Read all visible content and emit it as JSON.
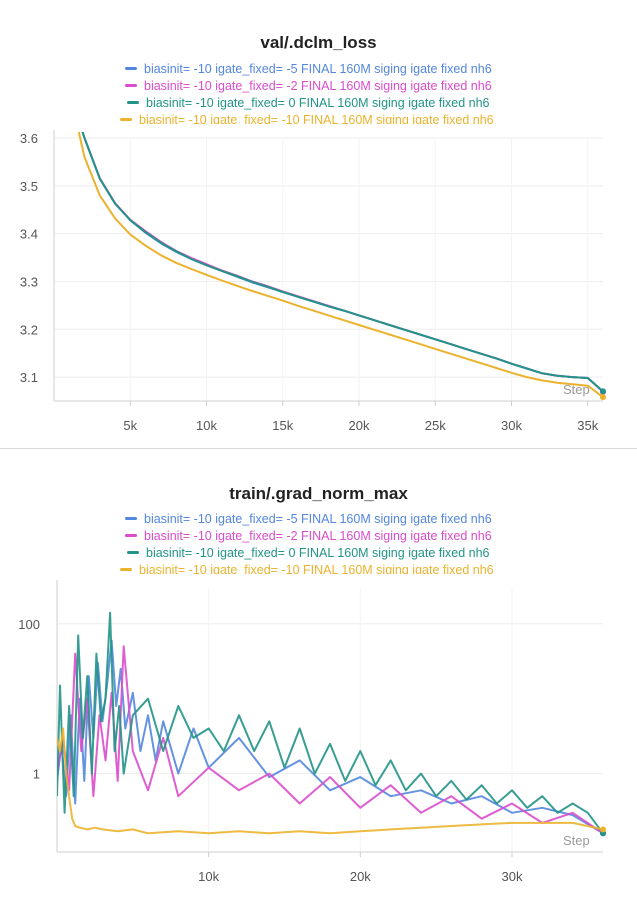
{
  "chart_data": [
    {
      "type": "line",
      "title": "val/.dclm_loss",
      "xlabel": "Step",
      "ylabel": "",
      "x_scale": "linear",
      "y_scale": "linear",
      "xlim": [
        0,
        36000
      ],
      "ylim": [
        3.05,
        3.6
      ],
      "x_ticks": [
        5000,
        10000,
        15000,
        20000,
        25000,
        30000,
        35000
      ],
      "x_tick_labels": [
        "5k",
        "10k",
        "15k",
        "20k",
        "25k",
        "30k",
        "35k"
      ],
      "y_ticks": [
        3.1,
        3.2,
        3.3,
        3.4,
        3.5,
        3.6
      ],
      "y_tick_labels": [
        "3.1",
        "3.2",
        "3.3",
        "3.4",
        "3.5",
        "3.6"
      ],
      "grid": true,
      "legend_position": "top",
      "series": [
        {
          "name": "biasinit= -10 igate_fixed= -5 FINAL 160M siging igate fixed nh6",
          "color": "#5387dd",
          "x": [
            1000,
            2000,
            3000,
            4000,
            5000,
            6000,
            7000,
            8000,
            9000,
            10000,
            11000,
            12000,
            13000,
            14000,
            15000,
            16000,
            17000,
            18000,
            19000,
            20000,
            21000,
            22000,
            23000,
            24000,
            25000,
            26000,
            27000,
            28000,
            29000,
            30000,
            31000,
            32000,
            33000,
            34000,
            35000,
            36000
          ],
          "y": [
            3.7,
            3.6,
            3.515,
            3.463,
            3.428,
            3.402,
            3.38,
            3.362,
            3.347,
            3.334,
            3.322,
            3.31,
            3.298,
            3.288,
            3.278,
            3.268,
            3.258,
            3.248,
            3.239,
            3.229,
            3.219,
            3.209,
            3.199,
            3.189,
            3.179,
            3.169,
            3.159,
            3.149,
            3.139,
            3.128,
            3.118,
            3.108,
            3.103,
            3.1,
            3.098,
            3.07
          ]
        },
        {
          "name": "biasinit= -10 igate_fixed= -2 FINAL 160M siging igate fixed nh6",
          "color": "#da4ccc",
          "x": [
            1000,
            2000,
            3000,
            4000,
            5000,
            6000,
            7000,
            8000,
            9000,
            10000,
            11000,
            12000,
            13000,
            14000,
            15000,
            16000,
            17000,
            18000,
            19000,
            20000,
            21000,
            22000,
            23000,
            24000,
            25000,
            26000,
            27000,
            28000,
            29000,
            30000,
            31000,
            32000,
            33000,
            34000,
            35000,
            36000
          ],
          "y": [
            3.7,
            3.6,
            3.516,
            3.464,
            3.429,
            3.405,
            3.383,
            3.364,
            3.349,
            3.336,
            3.323,
            3.312,
            3.3,
            3.29,
            3.279,
            3.269,
            3.259,
            3.249,
            3.239,
            3.229,
            3.219,
            3.209,
            3.199,
            3.189,
            3.179,
            3.169,
            3.159,
            3.149,
            3.139,
            3.128,
            3.118,
            3.108,
            3.103,
            3.1,
            3.098,
            3.069
          ]
        },
        {
          "name": "biasinit= -10 igate_fixed= 0 FINAL 160M siging igate fixed nh6",
          "color": "#229487",
          "x": [
            1000,
            2000,
            3000,
            4000,
            5000,
            6000,
            7000,
            8000,
            9000,
            10000,
            11000,
            12000,
            13000,
            14000,
            15000,
            16000,
            17000,
            18000,
            19000,
            20000,
            21000,
            22000,
            23000,
            24000,
            25000,
            26000,
            27000,
            28000,
            29000,
            30000,
            31000,
            32000,
            33000,
            34000,
            35000,
            36000
          ],
          "y": [
            3.7,
            3.6,
            3.515,
            3.463,
            3.428,
            3.403,
            3.381,
            3.363,
            3.347,
            3.334,
            3.322,
            3.311,
            3.299,
            3.289,
            3.278,
            3.268,
            3.258,
            3.248,
            3.239,
            3.229,
            3.219,
            3.209,
            3.199,
            3.189,
            3.179,
            3.169,
            3.159,
            3.149,
            3.139,
            3.128,
            3.118,
            3.108,
            3.103,
            3.1,
            3.098,
            3.07
          ]
        },
        {
          "name": "biasinit= -10 igate_fixed= -10 FINAL 160M siging igate fixed nh6",
          "color": "#ebb22e",
          "x": [
            1000,
            2000,
            3000,
            4000,
            5000,
            6000,
            7000,
            8000,
            9000,
            10000,
            11000,
            12000,
            13000,
            14000,
            15000,
            16000,
            17000,
            18000,
            19000,
            20000,
            21000,
            22000,
            23000,
            24000,
            25000,
            26000,
            27000,
            28000,
            29000,
            30000,
            31000,
            32000,
            33000,
            34000,
            35000,
            36000
          ],
          "y": [
            3.7,
            3.56,
            3.48,
            3.432,
            3.398,
            3.375,
            3.355,
            3.339,
            3.326,
            3.314,
            3.302,
            3.291,
            3.28,
            3.27,
            3.26,
            3.249,
            3.239,
            3.229,
            3.219,
            3.209,
            3.199,
            3.189,
            3.179,
            3.169,
            3.159,
            3.149,
            3.139,
            3.129,
            3.119,
            3.109,
            3.1,
            3.093,
            3.088,
            3.085,
            3.082,
            3.058
          ]
        }
      ]
    },
    {
      "type": "line",
      "title": "train/.grad_norm_max",
      "xlabel": "Step",
      "ylabel": "",
      "x_scale": "linear",
      "y_scale": "log",
      "xlim": [
        0,
        36000
      ],
      "ylim": [
        0.09,
        300
      ],
      "x_ticks": [
        10000,
        20000,
        30000
      ],
      "x_tick_labels": [
        "10k",
        "20k",
        "30k"
      ],
      "y_ticks": [
        1,
        100
      ],
      "y_tick_labels": [
        "1",
        "100"
      ],
      "grid": true,
      "legend_position": "top",
      "series": [
        {
          "name": "biasinit= -10 igate_fixed= -5 FINAL 160M siging igate fixed nh6",
          "color": "#5387dd",
          "x": [
            0,
            300,
            600,
            900,
            1200,
            1500,
            1800,
            2100,
            2400,
            2700,
            3000,
            3300,
            3600,
            3900,
            4200,
            4500,
            5000,
            5500,
            6000,
            6500,
            7000,
            8000,
            9000,
            10000,
            12000,
            14000,
            16000,
            18000,
            20000,
            22000,
            24000,
            26000,
            28000,
            30000,
            32000,
            34000,
            36000
          ],
          "y": [
            0.8,
            2.5,
            0.5,
            6,
            0.4,
            10,
            0.8,
            20,
            3,
            30,
            5,
            15,
            60,
            8,
            25,
            4,
            12,
            2,
            6,
            1.5,
            5,
            1,
            4,
            1.2,
            3,
            0.9,
            1.5,
            0.6,
            0.9,
            0.5,
            0.6,
            0.4,
            0.5,
            0.3,
            0.35,
            0.28,
            0.16
          ]
        },
        {
          "name": "biasinit= -10 igate_fixed= -2 FINAL 160M siging igate fixed nh6",
          "color": "#da4ccc",
          "x": [
            0,
            400,
            800,
            1200,
            1600,
            2000,
            2400,
            2800,
            3200,
            3600,
            4000,
            4400,
            5000,
            6000,
            7000,
            8000,
            10000,
            12000,
            14000,
            16000,
            18000,
            20000,
            22000,
            24000,
            26000,
            28000,
            30000,
            32000,
            34000,
            36000
          ],
          "y": [
            1,
            3,
            0.6,
            40,
            2,
            10,
            0.5,
            6,
            1.5,
            12,
            0.8,
            50,
            2,
            0.6,
            3,
            0.5,
            1.2,
            0.6,
            1,
            0.4,
            0.9,
            0.35,
            0.7,
            0.3,
            0.5,
            0.25,
            0.4,
            0.22,
            0.3,
            0.16
          ]
        },
        {
          "name": "biasinit= -10 igate_fixed= 0 FINAL 160M siging igate fixed nh6",
          "color": "#229487",
          "x": [
            0,
            200,
            500,
            800,
            1100,
            1400,
            1700,
            2000,
            2300,
            2600,
            2900,
            3200,
            3500,
            3800,
            4100,
            4400,
            5000,
            6000,
            7000,
            8000,
            9000,
            10000,
            11000,
            12000,
            13000,
            14000,
            15000,
            16000,
            17000,
            18000,
            19000,
            20000,
            21000,
            22000,
            23000,
            24000,
            25000,
            26000,
            27000,
            28000,
            29000,
            30000,
            31000,
            32000,
            33000,
            34000,
            35000,
            36000
          ],
          "y": [
            0.5,
            15,
            0.3,
            8,
            0.5,
            70,
            3,
            20,
            1,
            40,
            5,
            10,
            140,
            2,
            8,
            1,
            6,
            10,
            2,
            8,
            3,
            4,
            2,
            6,
            2,
            5,
            1.2,
            4,
            1,
            2.5,
            0.8,
            2,
            0.7,
            1.5,
            0.6,
            1,
            0.5,
            0.8,
            0.45,
            0.7,
            0.4,
            0.6,
            0.35,
            0.5,
            0.3,
            0.4,
            0.3,
            0.16
          ]
        },
        {
          "name": "biasinit= -10 igate_fixed= -10 FINAL 160M siging igate fixed nh6",
          "color": "#ebb22e",
          "x": [
            0,
            200,
            400,
            600,
            800,
            1000,
            1200,
            1500,
            2000,
            2500,
            3000,
            4000,
            5000,
            6000,
            8000,
            10000,
            12000,
            14000,
            16000,
            18000,
            20000,
            22000,
            24000,
            26000,
            28000,
            30000,
            32000,
            34000,
            36000
          ],
          "y": [
            3,
            2,
            4,
            1,
            0.5,
            0.25,
            0.2,
            0.19,
            0.18,
            0.19,
            0.18,
            0.17,
            0.18,
            0.16,
            0.17,
            0.16,
            0.17,
            0.16,
            0.17,
            0.16,
            0.17,
            0.18,
            0.19,
            0.2,
            0.21,
            0.22,
            0.22,
            0.22,
            0.18
          ]
        }
      ]
    }
  ]
}
